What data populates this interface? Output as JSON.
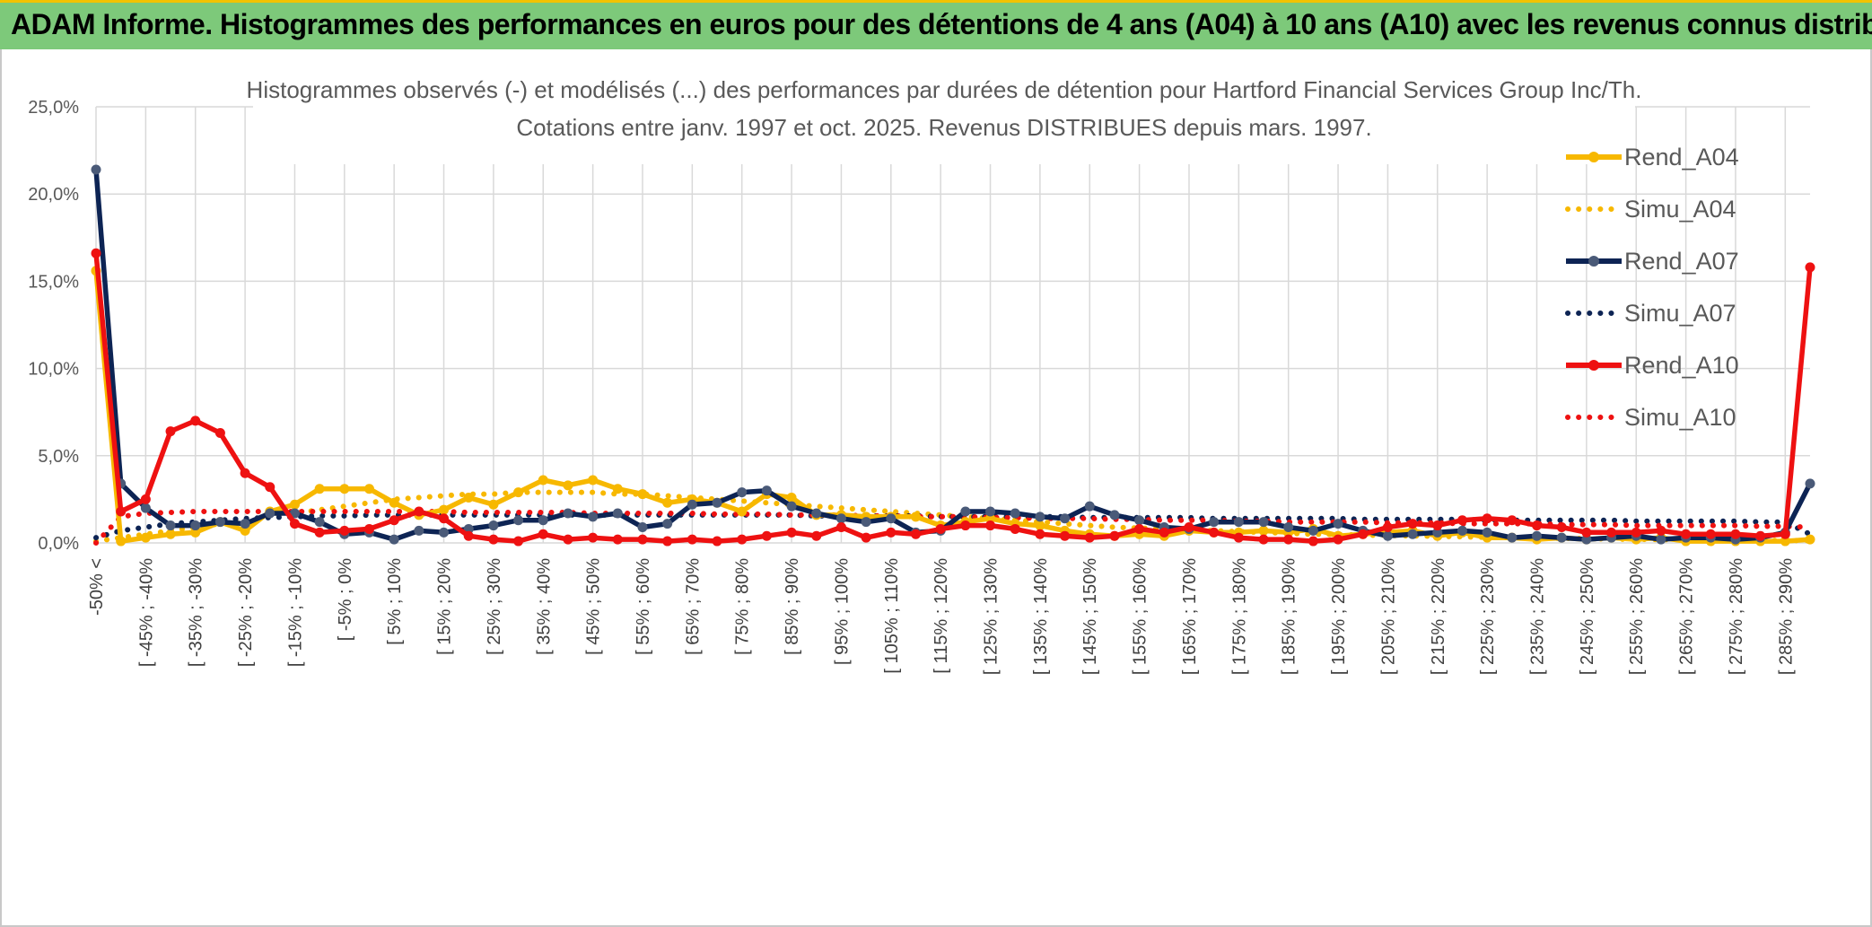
{
  "header": {
    "title": "ADAM Informe. Histogrammes des performances en euros pour des détentions de 4 ans (A04) à 10 ans (A10) avec les revenus connus distribués"
  },
  "colors": {
    "banner": "#7dc97a",
    "a04": "#f7b800",
    "a07": "#0d2454",
    "a07_marker": "#4a5a78",
    "a10": "#ee1111",
    "grid": "#d9d9d9",
    "text": "#595959"
  },
  "chart_data": {
    "type": "line",
    "title_line1": "Histogrammes observés (-) et modélisés (...) des performances par durées de détention pour Hartford Financial Services Group Inc/Th.",
    "title_line2": "Cotations entre janv. 1997 et oct. 2025. Revenus DISTRIBUES depuis mars. 1997.",
    "y_ticks": [
      "0,0%",
      "5,0%",
      "10,0%",
      "15,0%",
      "20,0%",
      "25,0%"
    ],
    "ylim": [
      0,
      25
    ],
    "x_tick_labels": [
      "-50% <",
      "[ -45% ; -40%",
      "[ -35% ; -30%",
      "[ -25% ; -20%",
      "[ -15% ; -10%",
      "[ -5% ; 0%",
      "[ 5% ; 10%",
      "[ 15% ; 20%",
      "[ 25% ; 30%",
      "[ 35% ; 40%",
      "[ 45% ; 50%",
      "[ 55% ; 60%",
      "[ 65% ; 70%",
      "[ 75% ; 80%",
      "[ 85% ; 90%",
      "[ 95% ; 100%",
      "[ 105% ; 110%",
      "[ 115% ; 120%",
      "[ 125% ; 130%",
      "[ 135% ; 140%",
      "[ 145% ; 150%",
      "[ 155% ; 160%",
      "[ 165% ; 170%",
      "[ 175% ; 180%",
      "[ 185% ; 190%",
      "[ 195% ; 200%",
      "[ 205% ; 210%",
      "[ 215% ; 220%",
      "[ 225% ; 230%",
      "[ 235% ; 240%",
      "[ 245% ; 250%",
      "[ 255% ; 260%",
      "[ 265% ; 270%",
      "[ 275% ; 280%",
      "[ 285% ; 290%"
    ],
    "n_categories": 70,
    "series": [
      {
        "name": "Rend_A04",
        "style": "solid",
        "color": "#f7b800",
        "markers": true,
        "values": [
          15.6,
          0.1,
          0.3,
          0.5,
          0.6,
          1.2,
          0.7,
          1.8,
          2.2,
          3.1,
          3.1,
          3.1,
          2.3,
          1.6,
          1.9,
          2.6,
          2.2,
          2.9,
          3.6,
          3.3,
          3.6,
          3.1,
          2.8,
          2.3,
          2.5,
          2.3,
          1.8,
          2.8,
          2.6,
          1.6,
          1.6,
          1.5,
          1.5,
          1.5,
          1.0,
          1.2,
          1.4,
          1.1,
          1.0,
          0.7,
          0.5,
          0.4,
          0.5,
          0.4,
          0.7,
          0.6,
          0.6,
          0.7,
          0.6,
          0.8,
          0.4,
          0.5,
          0.6,
          0.7,
          0.4,
          0.6,
          0.3,
          0.3,
          0.2,
          0.3,
          0.2,
          0.3,
          0.2,
          0.3,
          0.1,
          0.1,
          0.1,
          0.1,
          0.1,
          0.2
        ]
      },
      {
        "name": "Simu_A04",
        "style": "dotted",
        "color": "#f7b800",
        "markers": false,
        "values": [
          0.1,
          0.3,
          0.5,
          0.7,
          0.9,
          1.1,
          1.3,
          1.5,
          1.7,
          1.9,
          2.1,
          2.3,
          2.5,
          2.6,
          2.7,
          2.8,
          2.8,
          2.9,
          2.9,
          2.9,
          2.9,
          2.8,
          2.8,
          2.7,
          2.6,
          2.5,
          2.4,
          2.3,
          2.2,
          2.1,
          2.0,
          1.9,
          1.8,
          1.7,
          1.6,
          1.5,
          1.4,
          1.3,
          1.2,
          1.1,
          1.0,
          0.9,
          0.85,
          0.8,
          0.75,
          0.7,
          0.65,
          0.6,
          0.55,
          0.5,
          0.48,
          0.45,
          0.42,
          0.4,
          0.38,
          0.35,
          0.32,
          0.3,
          0.28,
          0.26,
          0.24,
          0.22,
          0.2,
          0.19,
          0.18,
          0.17,
          0.16,
          0.15,
          0.14,
          0.13
        ]
      },
      {
        "name": "Rend_A07",
        "style": "solid",
        "color": "#0d2454",
        "markers": true,
        "values": [
          21.4,
          3.4,
          2.0,
          1.0,
          1.0,
          1.2,
          1.1,
          1.7,
          1.7,
          1.2,
          0.5,
          0.6,
          0.2,
          0.7,
          0.6,
          0.8,
          1.0,
          1.3,
          1.3,
          1.7,
          1.5,
          1.7,
          0.9,
          1.1,
          2.2,
          2.3,
          2.9,
          3.0,
          2.1,
          1.7,
          1.4,
          1.2,
          1.4,
          0.6,
          0.7,
          1.8,
          1.8,
          1.7,
          1.5,
          1.4,
          2.1,
          1.6,
          1.3,
          0.9,
          0.8,
          1.2,
          1.2,
          1.2,
          0.9,
          0.7,
          1.1,
          0.7,
          0.4,
          0.5,
          0.6,
          0.7,
          0.6,
          0.3,
          0.4,
          0.3,
          0.2,
          0.3,
          0.4,
          0.2,
          0.3,
          0.3,
          0.2,
          0.3,
          0.6,
          3.4
        ]
      },
      {
        "name": "Simu_A07",
        "style": "dotted",
        "color": "#0d2454",
        "markers": false,
        "values": [
          0.3,
          0.7,
          0.9,
          1.1,
          1.2,
          1.3,
          1.4,
          1.45,
          1.5,
          1.55,
          1.55,
          1.6,
          1.6,
          1.6,
          1.6,
          1.6,
          1.6,
          1.6,
          1.6,
          1.6,
          1.6,
          1.6,
          1.6,
          1.6,
          1.6,
          1.6,
          1.6,
          1.6,
          1.6,
          1.55,
          1.55,
          1.55,
          1.55,
          1.55,
          1.5,
          1.5,
          1.5,
          1.5,
          1.5,
          1.5,
          1.45,
          1.45,
          1.45,
          1.45,
          1.45,
          1.4,
          1.4,
          1.4,
          1.4,
          1.4,
          1.4,
          1.35,
          1.35,
          1.35,
          1.35,
          1.35,
          1.3,
          1.3,
          1.3,
          1.3,
          1.3,
          1.3,
          1.25,
          1.25,
          1.25,
          1.25,
          1.25,
          1.2,
          1.2,
          0.5
        ]
      },
      {
        "name": "Rend_A10",
        "style": "solid",
        "color": "#ee1111",
        "markers": true,
        "values": [
          16.6,
          1.8,
          2.5,
          6.4,
          7.0,
          6.3,
          4.0,
          3.2,
          1.1,
          0.6,
          0.7,
          0.8,
          1.3,
          1.8,
          1.4,
          0.4,
          0.2,
          0.1,
          0.5,
          0.2,
          0.3,
          0.2,
          0.2,
          0.1,
          0.2,
          0.1,
          0.2,
          0.4,
          0.6,
          0.4,
          0.9,
          0.3,
          0.6,
          0.5,
          0.8,
          1.0,
          1.0,
          0.8,
          0.5,
          0.4,
          0.3,
          0.4,
          0.8,
          0.6,
          0.9,
          0.6,
          0.3,
          0.2,
          0.2,
          0.1,
          0.2,
          0.5,
          0.9,
          1.1,
          1.0,
          1.3,
          1.4,
          1.3,
          1.0,
          0.9,
          0.6,
          0.6,
          0.6,
          0.7,
          0.5,
          0.5,
          0.5,
          0.4,
          0.5,
          15.8
        ]
      },
      {
        "name": "Simu_A10",
        "style": "dotted",
        "color": "#ee1111",
        "markers": false,
        "values": [
          0.0,
          1.5,
          1.7,
          1.75,
          1.8,
          1.8,
          1.8,
          1.8,
          1.8,
          1.8,
          1.8,
          1.8,
          1.8,
          1.8,
          1.8,
          1.75,
          1.75,
          1.75,
          1.75,
          1.75,
          1.7,
          1.7,
          1.7,
          1.7,
          1.7,
          1.65,
          1.65,
          1.65,
          1.6,
          1.6,
          1.6,
          1.55,
          1.55,
          1.5,
          1.5,
          1.5,
          1.45,
          1.45,
          1.4,
          1.4,
          1.4,
          1.35,
          1.35,
          1.3,
          1.3,
          1.3,
          1.25,
          1.25,
          1.2,
          1.2,
          1.2,
          1.2,
          1.15,
          1.15,
          1.15,
          1.1,
          1.1,
          1.1,
          1.1,
          1.05,
          1.05,
          1.05,
          1.0,
          1.0,
          1.0,
          1.0,
          1.0,
          0.95,
          0.95,
          0.9
        ]
      }
    ],
    "legend_position": "right"
  }
}
